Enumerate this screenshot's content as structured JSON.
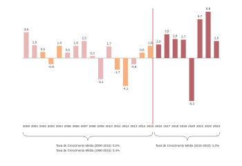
{
  "chart_data": {
    "type": "bar",
    "categories": [
      "2000",
      "2001",
      "2002",
      "2003",
      "2004",
      "2005",
      "2006",
      "2007",
      "2008",
      "2009",
      "2010",
      "2011",
      "2012",
      "2013",
      "2014",
      "2015",
      "2016",
      "2017",
      "2018",
      "2019",
      "2020",
      "2021",
      "2022",
      "2023"
    ],
    "values": [
      3.8,
      1.9,
      0.9,
      -0.9,
      1.8,
      0.8,
      1.8,
      2.5,
      0.3,
      -3.1,
      1.7,
      -1.7,
      -4.1,
      -0.9,
      0.8,
      1.8,
      2.0,
      3.5,
      2.8,
      2.7,
      -6.3,
      5.7,
      6.8,
      2.5
    ],
    "value_labels": [
      "3,8",
      "1,9",
      "0,9",
      "-0,9",
      "1,8",
      "0,8",
      "1,8",
      "2,5",
      "0,3",
      "-3,1",
      "1,7",
      "-1,7",
      "-4,1",
      "-0,9",
      "0,8",
      "1,8",
      "2,0",
      "3,5",
      "2,8",
      "2,7",
      "-6,3",
      "5,7",
      "6,8",
      "2,5"
    ],
    "colors": [
      "#e6b8b7",
      "#e6b8b7",
      "#f4b183",
      "#f4b183",
      "#f4b183",
      "#e6b8b7",
      "#e6b8b7",
      "#e6b8b7",
      "#e6b8b7",
      "#e6b8b7",
      "#e6b8b7",
      "#f4b183",
      "#f4b183",
      "#e6b8b7",
      "#f4b183",
      "#f4b183",
      "#b5646a",
      "#b5646a",
      "#b5646a",
      "#b5646a",
      "#b5646a",
      "#b5646a",
      "#b5646a",
      "#b5646a"
    ],
    "ylim": [
      -7,
      7
    ],
    "annotations": [
      "Taxa de Crescimento Média (2000-2015): 0,2%",
      "Taxa de Crescimento Média (1990-2015): 0,4%",
      "Taxa de Crescimento Média (2015-2023): 2,3%"
    ]
  }
}
